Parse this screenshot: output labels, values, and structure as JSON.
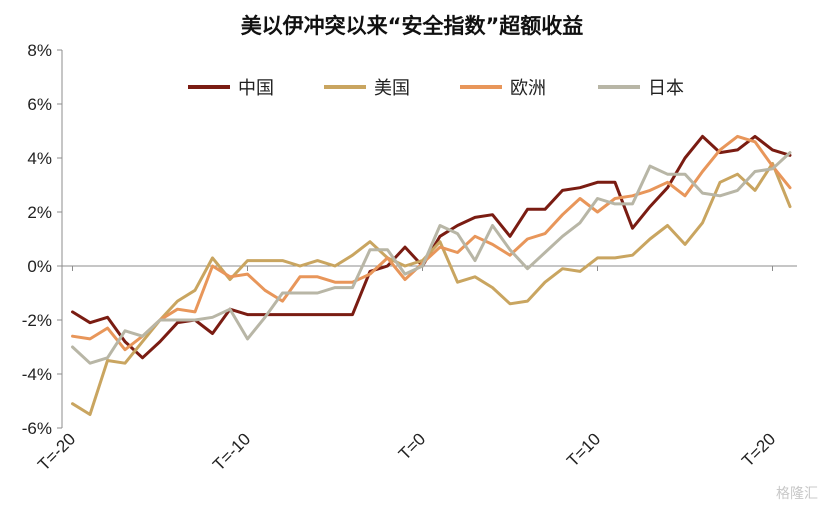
{
  "chart_data": {
    "type": "line",
    "title": "美以伊冲突以来“安全指数”超额收益",
    "xlabel": "",
    "ylabel": "",
    "ylim": [
      -6,
      8
    ],
    "y_ticks": [
      -6,
      -4,
      -2,
      0,
      2,
      4,
      6,
      8
    ],
    "y_tick_labels": [
      "-6%",
      "-4%",
      "-2%",
      "0%",
      "2%",
      "4%",
      "6%",
      "8%"
    ],
    "x_ticks": [
      -20,
      -10,
      0,
      10,
      20
    ],
    "x_tick_labels": [
      "T=-20",
      "T=-10",
      "T=0",
      "T=10",
      "T=20"
    ],
    "legend_position": "top",
    "grid": false,
    "x": [
      -20,
      -19,
      -18,
      -17,
      -16,
      -15,
      -14,
      -13,
      -12,
      -11,
      -10,
      -9,
      -8,
      -7,
      -6,
      -5,
      -4,
      -3,
      -2,
      -1,
      0,
      1,
      2,
      3,
      4,
      5,
      6,
      7,
      8,
      9,
      10,
      11,
      12,
      13,
      14,
      15,
      16,
      17,
      18,
      19,
      20,
      21
    ],
    "series": [
      {
        "name": "中国",
        "color": "#7a1c12",
        "values": [
          -1.7,
          -2.1,
          -1.9,
          -2.8,
          -3.4,
          -2.8,
          -2.1,
          -2.0,
          -2.5,
          -1.6,
          -1.8,
          -1.8,
          -1.8,
          -1.8,
          -1.8,
          -1.8,
          -1.8,
          -0.2,
          0.0,
          0.7,
          0.0,
          1.1,
          1.5,
          1.8,
          1.9,
          1.1,
          2.1,
          2.1,
          2.8,
          2.9,
          3.1,
          3.1,
          1.4,
          2.2,
          2.9,
          4.0,
          4.8,
          4.2,
          4.3,
          4.8,
          4.3,
          4.1
        ]
      },
      {
        "name": "美国",
        "color": "#c9a560",
        "values": [
          -5.1,
          -5.5,
          -3.5,
          -3.6,
          -2.8,
          -2.0,
          -1.3,
          -0.9,
          0.3,
          -0.5,
          0.2,
          0.2,
          0.2,
          0.0,
          0.2,
          0.0,
          0.4,
          0.9,
          0.3,
          0.0,
          0.2,
          0.9,
          -0.6,
          -0.4,
          -0.8,
          -1.4,
          -1.3,
          -0.6,
          -0.1,
          -0.2,
          0.3,
          0.3,
          0.4,
          1.0,
          1.5,
          0.8,
          1.6,
          3.1,
          3.4,
          2.8,
          3.8,
          2.2
        ]
      },
      {
        "name": "欧洲",
        "color": "#e8965a",
        "values": [
          -2.6,
          -2.7,
          -2.3,
          -3.1,
          -2.6,
          -2.0,
          -1.6,
          -1.7,
          0.0,
          -0.4,
          -0.3,
          -0.9,
          -1.3,
          -0.4,
          -0.4,
          -0.6,
          -0.6,
          -0.3,
          0.3,
          -0.5,
          0.1,
          0.7,
          0.5,
          1.1,
          0.8,
          0.4,
          1.0,
          1.2,
          1.9,
          2.5,
          2.0,
          2.5,
          2.6,
          2.8,
          3.1,
          2.6,
          3.5,
          4.3,
          4.8,
          4.6,
          3.7,
          2.9
        ]
      },
      {
        "name": "日本",
        "color": "#b8b6a6",
        "values": [
          -3.0,
          -3.6,
          -3.4,
          -2.4,
          -2.6,
          -2.0,
          -2.0,
          -2.0,
          -1.9,
          -1.6,
          -2.7,
          -1.9,
          -1.0,
          -1.0,
          -1.0,
          -0.8,
          -0.8,
          0.6,
          0.6,
          -0.3,
          0.0,
          1.5,
          1.2,
          0.2,
          1.5,
          0.6,
          -0.1,
          0.5,
          1.1,
          1.6,
          2.5,
          2.3,
          2.3,
          3.7,
          3.4,
          3.4,
          2.7,
          2.6,
          2.8,
          3.5,
          3.6,
          4.2
        ]
      }
    ]
  },
  "watermark": "格隆汇"
}
